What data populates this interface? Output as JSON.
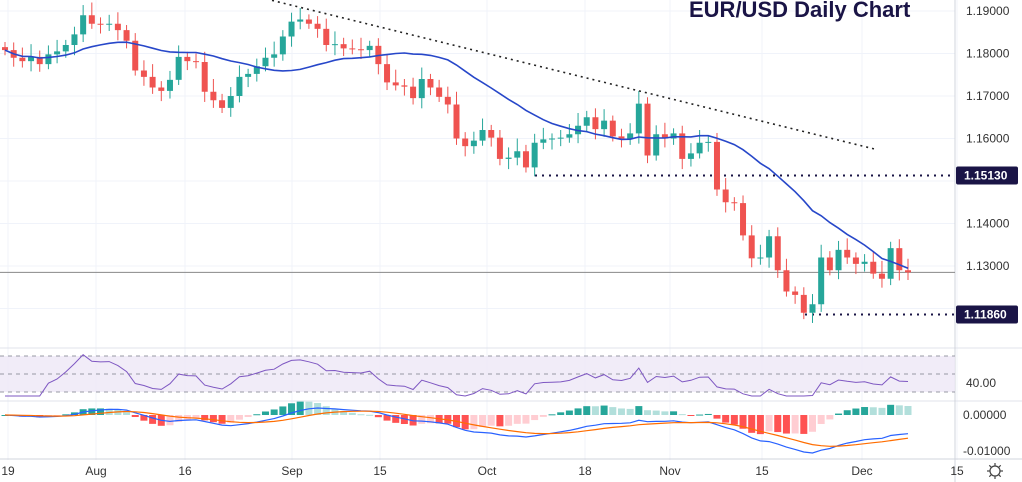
{
  "chart_data": {
    "type": "candlestick",
    "title": "EUR/USD Daily Chart",
    "price_axis": {
      "ticks": [
        "1.19000",
        "1.18000",
        "1.17000",
        "1.16000",
        "1.14000",
        "1.13000"
      ],
      "range": [
        1.113,
        1.1926
      ]
    },
    "x_ticks": [
      "19",
      "Aug",
      "16",
      "Sep",
      "15",
      "Oct",
      "18",
      "Nov",
      "15",
      "Dec",
      "15"
    ],
    "levels": [
      {
        "label": "1.15130",
        "value": 1.1513
      },
      {
        "label": "1.11860",
        "value": 1.1186
      }
    ],
    "trendline": {
      "from": {
        "date": "Sep 3",
        "value": 1.1925
      },
      "to": {
        "date": "Dec 10",
        "value": 1.1575
      }
    },
    "last_price": 1.1285,
    "closes": [
      1.1808,
      1.179,
      1.1782,
      1.1792,
      1.1775,
      1.1798,
      1.1805,
      1.182,
      1.1845,
      1.189,
      1.187,
      1.1868,
      1.187,
      1.1855,
      1.183,
      1.176,
      1.1745,
      1.172,
      1.1712,
      1.1738,
      1.1792,
      1.1782,
      1.178,
      1.171,
      1.169,
      1.1672,
      1.17,
      1.1745,
      1.1752,
      1.177,
      1.179,
      1.1798,
      1.184,
      1.1875,
      1.188,
      1.187,
      1.1858,
      1.182,
      1.1822,
      1.1812,
      1.181,
      1.1808,
      1.1818,
      1.1775,
      1.1732,
      1.1725,
      1.1722,
      1.1695,
      1.174,
      1.172,
      1.1698,
      1.168,
      1.16,
      1.1582,
      1.1595,
      1.162,
      1.1602,
      1.1552,
      1.1555,
      1.157,
      1.1532,
      1.159,
      1.1598,
      1.16,
      1.1602,
      1.161,
      1.163,
      1.165,
      1.1622,
      1.1642,
      1.1605,
      1.16,
      1.1612,
      1.1682,
      1.156,
      1.161,
      1.16,
      1.1612,
      1.1552,
      1.1565,
      1.159,
      1.1592,
      1.148,
      1.145,
      1.1448,
      1.1372,
      1.1318,
      1.132,
      1.137,
      1.129,
      1.124,
      1.1232,
      1.119,
      1.121,
      1.132,
      1.129,
      1.1338,
      1.132,
      1.1305,
      1.131,
      1.1282,
      1.127,
      1.1342,
      1.129,
      1.1285
    ],
    "first_open": 1.1815,
    "ma_line": {
      "type": "SMA",
      "period": 20,
      "color": "#2747c9"
    },
    "rsi": {
      "axis_label": "40.00",
      "bands": [
        70,
        50,
        30
      ],
      "color": "#7e57c2"
    },
    "macd": {
      "axis_ticks": [
        "0.00000",
        "-0.01000"
      ],
      "macd_color": "#2962ff",
      "signal_color": "#ff6d00"
    },
    "colors": {
      "up": "#26a69a",
      "down": "#ef5350",
      "label_bg": "#1a1446",
      "title": "#1a1446"
    }
  }
}
